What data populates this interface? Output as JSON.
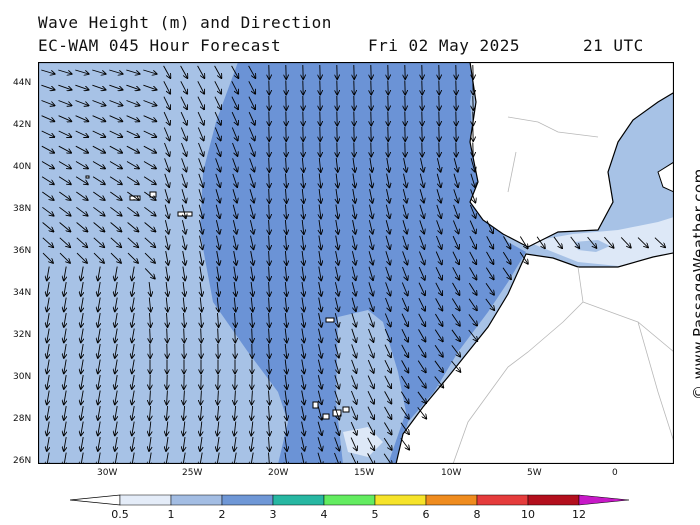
{
  "header": {
    "line1": "Wave Height (m) and Direction",
    "model": "EC-WAM 045 Hour Forecast",
    "date": "Fri 02 May 2025",
    "time": "21 UTC"
  },
  "credit": "© www.PassageWeather.com",
  "lat_labels": [
    "44N",
    "42N",
    "40N",
    "38N",
    "36N",
    "34N",
    "32N",
    "30N",
    "28N",
    "26N"
  ],
  "lon_labels": [
    "30W",
    "25W",
    "20W",
    "15W",
    "10W",
    "5W",
    "0"
  ],
  "colorbar": {
    "ticks": [
      "0.5",
      "1",
      "2",
      "3",
      "4",
      "5",
      "6",
      "8",
      "10",
      "12"
    ],
    "colors": [
      "#e4ecf8",
      "#a3bde3",
      "#6f97d6",
      "#27b7a2",
      "#63ec60",
      "#f6e32a",
      "#ef8c1f",
      "#e53c3c",
      "#b30f1d",
      "#c719c7"
    ]
  },
  "map_colors": {
    "open_ocean": "#a7c2e6",
    "high_swell": "#6b93d6",
    "calm": "#dde8f7",
    "land": "#ffffff",
    "coast": "#000000",
    "border": "#b8b8b8"
  },
  "wave_direction_note": "arrows"
}
